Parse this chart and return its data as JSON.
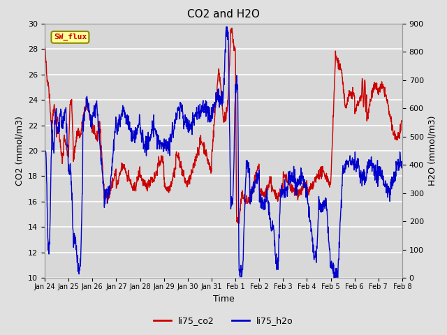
{
  "title": "CO2 and H2O",
  "xlabel": "Time",
  "ylabel_left": "CO2 (mmol/m3)",
  "ylabel_right": "H2O (mmol/m3)",
  "ylim_left": [
    10,
    30
  ],
  "ylim_right": [
    0,
    900
  ],
  "yticks_left": [
    10,
    12,
    14,
    16,
    18,
    20,
    22,
    24,
    26,
    28,
    30
  ],
  "yticks_right": [
    0,
    100,
    200,
    300,
    400,
    500,
    600,
    700,
    800,
    900
  ],
  "background_color": "#e0e0e0",
  "plot_bg_color": "#d8d8d8",
  "grid_color": "#ffffff",
  "line_color_co2": "#cc0000",
  "line_color_h2o": "#0000cc",
  "line_width": 1.0,
  "legend_label_co2": "li75_co2",
  "legend_label_h2o": "li75_h2o",
  "sw_flux_label": "SW_flux",
  "sw_flux_bg": "#ffff99",
  "sw_flux_border": "#888800",
  "sw_flux_text_color": "#cc0000",
  "xtick_labels": [
    "Jan 24",
    "Jan 25",
    "Jan 26",
    "Jan 27",
    "Jan 28",
    "Jan 29",
    "Jan 30",
    "Jan 31",
    "Feb 1",
    "Feb 2",
    "Feb 3",
    "Feb 4",
    "Feb 5",
    "Feb 6",
    "Feb 7",
    "Feb 8"
  ],
  "n_points": 1500
}
